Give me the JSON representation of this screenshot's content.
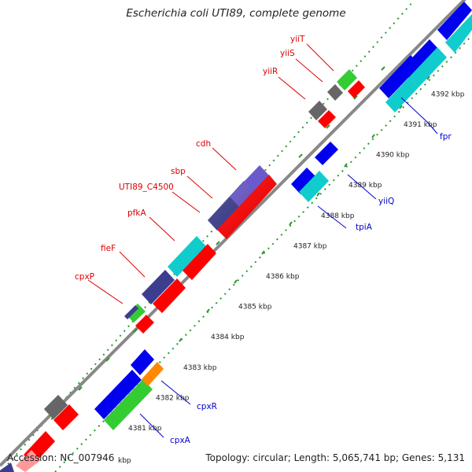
{
  "title": "Escherichia coli UTI89, complete genome",
  "footer": {
    "accession": "Accession: NC_007946",
    "summary": "Topology: circular; Length: 5,065,741 bp; Genes: 5,131"
  },
  "ticks": [
    {
      "label": "4381 kbp",
      "pos": 4381
    },
    {
      "label": "4382 kbp",
      "pos": 4382
    },
    {
      "label": "4383 kbp",
      "pos": 4383
    },
    {
      "label": "4384 kbp",
      "pos": 4384
    },
    {
      "label": "4385 kbp",
      "pos": 4385
    },
    {
      "label": "4386 kbp",
      "pos": 4386
    },
    {
      "label": "4387 kbp",
      "pos": 4387
    },
    {
      "label": "4388 kbp",
      "pos": 4388
    },
    {
      "label": "4389 kbp",
      "pos": 4389
    },
    {
      "label": "4390 kbp",
      "pos": 4390
    },
    {
      "label": "4391 kbp",
      "pos": 4391
    },
    {
      "label": "4392 kbp",
      "pos": 4392
    }
  ],
  "partial_tick_label": "kbp",
  "colors": {
    "red": "#ff0000",
    "blue": "#0000ee",
    "cyan": "#11cccc",
    "navy": "#3d3d90",
    "purple": "#6a5acd",
    "green": "#33cc33",
    "gray": "#666666",
    "orange": "#ff8800",
    "backbone": "#888888",
    "dots": "#2a9a2a",
    "label_red": "#dd0000",
    "label_blue": "#0000cc"
  },
  "labels_top": [
    {
      "text": "yiiT",
      "color": "label_red"
    },
    {
      "text": "yiiS",
      "color": "label_red"
    },
    {
      "text": "yiiR",
      "color": "label_red"
    },
    {
      "text": "cdh",
      "color": "label_red"
    },
    {
      "text": "sbp",
      "color": "label_red"
    },
    {
      "text": "UTI89_C4500",
      "color": "label_red"
    },
    {
      "text": "pfkA",
      "color": "label_red"
    },
    {
      "text": "fieF",
      "color": "label_red"
    },
    {
      "text": "cpxP",
      "color": "label_red"
    }
  ],
  "labels_bottom": [
    {
      "text": "fpr",
      "color": "label_blue"
    },
    {
      "text": "yiiQ",
      "color": "label_blue"
    },
    {
      "text": "tpiA",
      "color": "label_blue"
    },
    {
      "text": "cpxR",
      "color": "label_blue"
    },
    {
      "text": "cpxA",
      "color": "label_blue"
    }
  ]
}
